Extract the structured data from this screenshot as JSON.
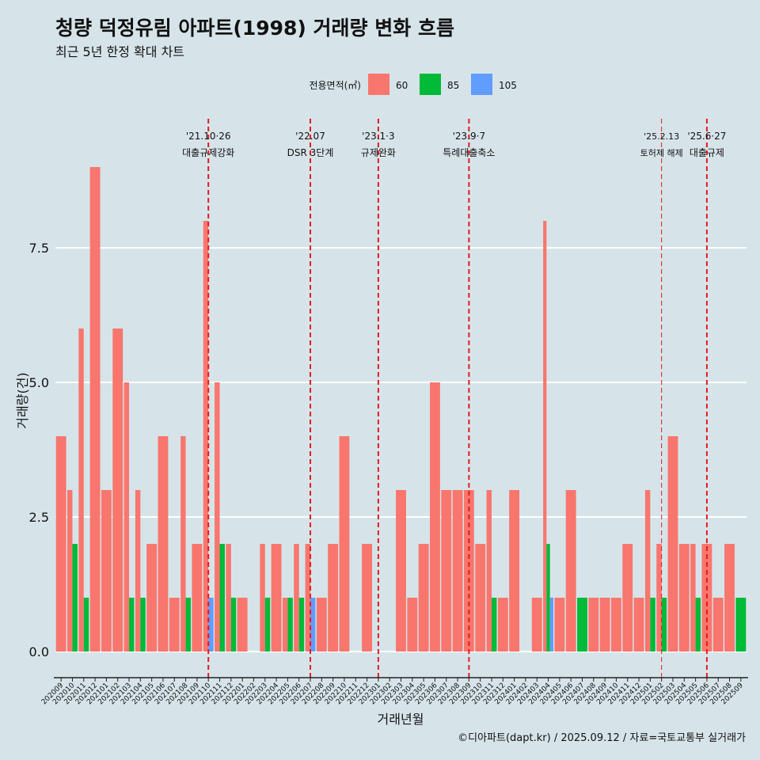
{
  "title": "청량 덕정유림 아파트(1998) 거래량 변화 흐름",
  "subtitle": "최근 5년 한정 확대 차트",
  "caption": "©디아파트(dapt.kr) / 2025.09.12 / 자료=국토교통부 실거래가",
  "chart_data": {
    "type": "bar",
    "xlabel": "거래년월",
    "ylabel": "거래량(건)",
    "ylim": [
      0,
      9.5
    ],
    "yticks": [
      0,
      2.5,
      5,
      7.5
    ],
    "ytick_labels": [
      "0.0",
      "2.5",
      "5.0",
      "7.5"
    ],
    "grid": "horizontal",
    "legend": {
      "title": "전용면적(㎡)",
      "position": "top",
      "entries": [
        {
          "label": "60",
          "color": "#f8766d"
        },
        {
          "label": "85",
          "color": "#00ba38"
        },
        {
          "label": "105",
          "color": "#619cff"
        }
      ]
    },
    "categories": [
      "202009",
      "202010",
      "202011",
      "202012",
      "202101",
      "202102",
      "202103",
      "202104",
      "202105",
      "202106",
      "202107",
      "202108",
      "202109",
      "202110",
      "202111",
      "202112",
      "202201",
      "202202",
      "202203",
      "202204",
      "202205",
      "202206",
      "202207",
      "202208",
      "202209",
      "202210",
      "202211",
      "202212",
      "202301",
      "202302",
      "202303",
      "202304",
      "202305",
      "202306",
      "202307",
      "202308",
      "202309",
      "202310",
      "202311",
      "202312",
      "202401",
      "202402",
      "202403",
      "202404",
      "202405",
      "202406",
      "202407",
      "202408",
      "202409",
      "202410",
      "202411",
      "202412",
      "202501",
      "202502",
      "202503",
      "202504",
      "202505",
      "202506",
      "202507",
      "202508",
      "202509"
    ],
    "series": [
      {
        "name": "60",
        "values": [
          4,
          3,
          6,
          9,
          3,
          6,
          5,
          3,
          2,
          4,
          1,
          4,
          2,
          8,
          5,
          2,
          1,
          0,
          2,
          2,
          1,
          2,
          2,
          1,
          2,
          4,
          0,
          2,
          0,
          0,
          3,
          1,
          2,
          5,
          3,
          3,
          3,
          2,
          3,
          1,
          3,
          0,
          1,
          8,
          1,
          3,
          0,
          1,
          1,
          1,
          2,
          1,
          3,
          2,
          4,
          2,
          2,
          2,
          1,
          2,
          0
        ]
      },
      {
        "name": "85",
        "values": [
          0,
          2,
          1,
          0,
          0,
          0,
          1,
          1,
          0,
          0,
          0,
          1,
          0,
          0,
          2,
          1,
          0,
          0,
          1,
          0,
          1,
          1,
          0,
          0,
          0,
          0,
          0,
          0,
          0,
          0,
          0,
          0,
          0,
          0,
          0,
          0,
          0,
          0,
          1,
          0,
          0,
          0,
          0,
          2,
          0,
          0,
          1,
          0,
          0,
          0,
          0,
          0,
          1,
          1,
          0,
          0,
          1,
          0,
          0,
          0,
          1
        ]
      },
      {
        "name": "105",
        "values": [
          0,
          0,
          0,
          0,
          0,
          0,
          0,
          0,
          0,
          0,
          0,
          0,
          0,
          1,
          0,
          0,
          0,
          0,
          0,
          0,
          0,
          0,
          1,
          0,
          0,
          0,
          0,
          0,
          0,
          0,
          0,
          0,
          0,
          0,
          0,
          0,
          0,
          0,
          0,
          0,
          0,
          0,
          0,
          1,
          0,
          0,
          0,
          0,
          0,
          0,
          0,
          0,
          0,
          0,
          0,
          0,
          0,
          0,
          0,
          0,
          0
        ]
      }
    ],
    "annotations": [
      {
        "x": "202110",
        "date": "'21.10·26",
        "label": "대출규제강화"
      },
      {
        "x": "202207",
        "date": "'22.07",
        "label": "DSR 3단계"
      },
      {
        "x": "202301",
        "date": "'23.1·3",
        "label": "규제완화"
      },
      {
        "x": "202309",
        "date": "'23.9·7",
        "label": "특례대출축소"
      },
      {
        "x": "202502",
        "date": "'25.2.13",
        "label": "토허제 해제"
      },
      {
        "x": "202506",
        "date": "'25.6·27",
        "label": "대출규제"
      }
    ]
  }
}
